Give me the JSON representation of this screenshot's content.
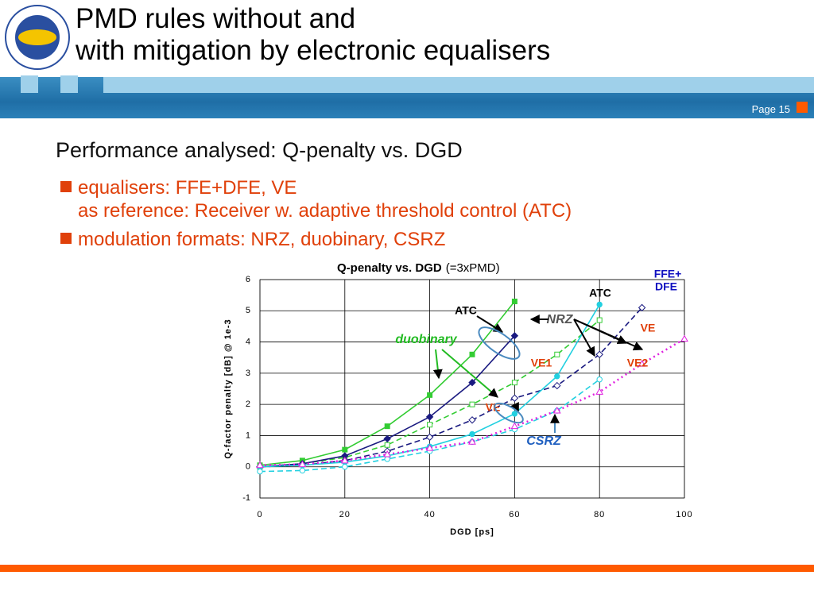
{
  "header": {
    "title": [
      "PMD rules without and",
      "with mitigation by electronic equalisers"
    ],
    "page": "Page 15"
  },
  "body": {
    "heading": "Performance analysed: Q-penalty vs. DGD",
    "bullets": [
      [
        "equalisers: FFE+DFE, VE",
        "as reference: Receiver w. adaptive threshold control (ATC)"
      ],
      [
        "modulation formats: NRZ, duobinary, CSRZ"
      ]
    ]
  },
  "chart_data": {
    "type": "line",
    "title": "Q-penalty vs. DGD",
    "subtitle": "(=3xPMD)",
    "xlabel": "DGD [ps]",
    "ylabel": "Q-factor penalty [dB] @ 1e-3",
    "x": [
      0,
      10,
      20,
      30,
      40,
      50,
      60,
      70,
      80,
      90,
      100
    ],
    "xlim": [
      0,
      100
    ],
    "xticks": [
      0,
      20,
      40,
      60,
      80,
      100
    ],
    "ylim": [
      -1,
      6
    ],
    "yticks": [
      -1,
      0,
      1,
      2,
      3,
      4,
      5,
      6
    ],
    "grid": true,
    "series": [
      {
        "color": "#33cc33",
        "dash": "solid",
        "marker": "square",
        "filled": true,
        "values": [
          0.05,
          0.2,
          0.55,
          1.3,
          2.3,
          3.6,
          5.3,
          null,
          null,
          null,
          null
        ]
      },
      {
        "color": "#33cc33",
        "dash": "dashed",
        "marker": "square",
        "filled": false,
        "values": [
          0,
          0.1,
          0.3,
          0.7,
          1.35,
          2.0,
          2.7,
          3.6,
          4.7,
          null,
          null
        ]
      },
      {
        "color": "#1a1a80",
        "dash": "solid",
        "marker": "diamond",
        "filled": true,
        "values": [
          0,
          0.1,
          0.35,
          0.9,
          1.6,
          2.7,
          4.2,
          null,
          null,
          null,
          null
        ]
      },
      {
        "color": "#1a1a80",
        "dash": "dashed",
        "marker": "diamond",
        "filled": false,
        "values": [
          0,
          0.05,
          0.2,
          0.5,
          0.95,
          1.5,
          2.2,
          2.6,
          3.6,
          5.1,
          null
        ]
      },
      {
        "color": "#22d0e0",
        "dash": "solid",
        "marker": "circle",
        "filled": true,
        "values": [
          0,
          0.05,
          0.15,
          0.35,
          0.65,
          1.05,
          1.7,
          2.9,
          5.2,
          null,
          null
        ]
      },
      {
        "color": "#22d0e0",
        "dash": "dashed",
        "marker": "circle",
        "filled": false,
        "values": [
          -0.15,
          -0.12,
          0,
          0.25,
          0.5,
          0.8,
          1.2,
          1.8,
          2.8,
          null,
          null
        ]
      },
      {
        "color": "#e020e0",
        "dash": "dotted",
        "marker": "triangle",
        "filled": false,
        "values": [
          0.05,
          0.08,
          0.2,
          0.4,
          0.6,
          0.8,
          1.3,
          1.8,
          2.4,
          3.3,
          4.1
        ]
      }
    ],
    "annotations": [
      {
        "text": "ATC",
        "color": "#000000"
      },
      {
        "text": "ATC",
        "color": "#000000"
      },
      {
        "text": "FFE+",
        "color": "#1010c0"
      },
      {
        "text": "DFE",
        "color": "#1010c0"
      },
      {
        "text": "NRZ",
        "color": "#555555"
      },
      {
        "text": "VE",
        "color": "#e0400a"
      },
      {
        "text": "VE1",
        "color": "#e0400a"
      },
      {
        "text": "VE2",
        "color": "#e0400a"
      },
      {
        "text": "duobinary",
        "color": "#22bb22"
      },
      {
        "text": "VE",
        "color": "#e0400a"
      },
      {
        "text": "CSRZ",
        "color": "#2060c0"
      }
    ]
  }
}
